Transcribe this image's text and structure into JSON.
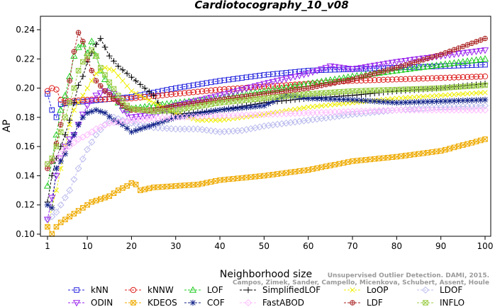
{
  "chart_data": {
    "type": "line",
    "title": "Cardiotocography_10_v08",
    "xlabel": "Neighborhood size",
    "ylabel": "AP",
    "xlim": [
      1,
      100
    ],
    "ylim": [
      0.1,
      0.245
    ],
    "xticks": [
      1,
      10,
      20,
      30,
      40,
      50,
      60,
      70,
      80,
      90,
      100
    ],
    "xtick_labels": [
      "1",
      "10",
      "20",
      "30",
      "40",
      "50",
      "60",
      "70",
      "80",
      "90",
      "100"
    ],
    "yticks": [
      0.1,
      0.12,
      0.14,
      0.16,
      0.18,
      0.2,
      0.22,
      0.24
    ],
    "ytick_labels": [
      "0.10",
      "0.12",
      "0.14",
      "0.16",
      "0.18",
      "0.20",
      "0.22",
      "0.24"
    ],
    "grid": false,
    "legend_position": "bottom",
    "series": [
      {
        "name": "kNN",
        "color": "#2222dd",
        "marker": "square",
        "dash": "dashed",
        "knots": [
          [
            1,
            0.196
          ],
          [
            2,
            0.185
          ],
          [
            3,
            0.18
          ],
          [
            4,
            0.189
          ],
          [
            6,
            0.19
          ],
          [
            10,
            0.191
          ],
          [
            20,
            0.194
          ],
          [
            30,
            0.2
          ],
          [
            40,
            0.205
          ],
          [
            50,
            0.209
          ],
          [
            60,
            0.212
          ],
          [
            70,
            0.213
          ],
          [
            80,
            0.214
          ],
          [
            90,
            0.215
          ],
          [
            100,
            0.216
          ]
        ]
      },
      {
        "name": "kNNW",
        "color": "#dd2222",
        "marker": "circle",
        "dash": "dashed",
        "knots": [
          [
            1,
            0.198
          ],
          [
            2,
            0.2
          ],
          [
            3,
            0.199
          ],
          [
            4,
            0.192
          ],
          [
            6,
            0.191
          ],
          [
            10,
            0.192
          ],
          [
            20,
            0.193
          ],
          [
            30,
            0.196
          ],
          [
            40,
            0.199
          ],
          [
            50,
            0.201
          ],
          [
            60,
            0.203
          ],
          [
            70,
            0.205
          ],
          [
            80,
            0.206
          ],
          [
            90,
            0.207
          ],
          [
            100,
            0.208
          ]
        ]
      },
      {
        "name": "LOF",
        "color": "#22cc22",
        "marker": "triangle",
        "dash": "dashed",
        "knots": [
          [
            1,
            0.133
          ],
          [
            2,
            0.15
          ],
          [
            3,
            0.168
          ],
          [
            4,
            0.185
          ],
          [
            5,
            0.195
          ],
          [
            6,
            0.208
          ],
          [
            7,
            0.222
          ],
          [
            8,
            0.228
          ],
          [
            9,
            0.23
          ],
          [
            10,
            0.224
          ],
          [
            11,
            0.232
          ],
          [
            12,
            0.222
          ],
          [
            13,
            0.212
          ],
          [
            15,
            0.2
          ],
          [
            17,
            0.19
          ],
          [
            19,
            0.185
          ],
          [
            20,
            0.186
          ],
          [
            25,
            0.188
          ],
          [
            30,
            0.19
          ],
          [
            40,
            0.193
          ],
          [
            50,
            0.198
          ],
          [
            60,
            0.203
          ],
          [
            70,
            0.208
          ],
          [
            80,
            0.212
          ],
          [
            90,
            0.216
          ],
          [
            100,
            0.22
          ]
        ]
      },
      {
        "name": "SimplifiedLOF",
        "color": "#000000",
        "marker": "plus",
        "dash": "dashed",
        "knots": [
          [
            1,
            0.122
          ],
          [
            2,
            0.14
          ],
          [
            3,
            0.152
          ],
          [
            4,
            0.16
          ],
          [
            5,
            0.168
          ],
          [
            6,
            0.178
          ],
          [
            7,
            0.19
          ],
          [
            8,
            0.202
          ],
          [
            9,
            0.208
          ],
          [
            10,
            0.218
          ],
          [
            11,
            0.224
          ],
          [
            12,
            0.23
          ],
          [
            13,
            0.234
          ],
          [
            14,
            0.228
          ],
          [
            15,
            0.222
          ],
          [
            17,
            0.215
          ],
          [
            19,
            0.21
          ],
          [
            21,
            0.205
          ],
          [
            23,
            0.2
          ],
          [
            25,
            0.195
          ],
          [
            27,
            0.185
          ],
          [
            30,
            0.182
          ],
          [
            40,
            0.185
          ],
          [
            50,
            0.19
          ],
          [
            60,
            0.193
          ],
          [
            70,
            0.195
          ],
          [
            80,
            0.198
          ],
          [
            90,
            0.2
          ],
          [
            100,
            0.203
          ]
        ]
      },
      {
        "name": "LoOP",
        "color": "#eeee00",
        "marker": "x",
        "dash": "dashed",
        "knots": [
          [
            1,
            0.105
          ],
          [
            2,
            0.118
          ],
          [
            3,
            0.13
          ],
          [
            4,
            0.145
          ],
          [
            5,
            0.16
          ],
          [
            6,
            0.175
          ],
          [
            7,
            0.185
          ],
          [
            8,
            0.19
          ],
          [
            10,
            0.2
          ],
          [
            12,
            0.21
          ],
          [
            14,
            0.214
          ],
          [
            16,
            0.212
          ],
          [
            18,
            0.205
          ],
          [
            20,
            0.198
          ],
          [
            25,
            0.19
          ],
          [
            30,
            0.183
          ],
          [
            35,
            0.178
          ],
          [
            40,
            0.178
          ],
          [
            50,
            0.182
          ],
          [
            60,
            0.187
          ],
          [
            70,
            0.19
          ],
          [
            80,
            0.193
          ],
          [
            90,
            0.195
          ],
          [
            100,
            0.197
          ]
        ]
      },
      {
        "name": "LDOF",
        "color": "#bbbbee",
        "marker": "diamond",
        "dash": "dashed",
        "knots": [
          [
            1,
            0.11
          ],
          [
            2,
            0.112
          ],
          [
            3,
            0.115
          ],
          [
            4,
            0.12
          ],
          [
            6,
            0.13
          ],
          [
            8,
            0.145
          ],
          [
            10,
            0.158
          ],
          [
            12,
            0.168
          ],
          [
            14,
            0.175
          ],
          [
            16,
            0.18
          ],
          [
            18,
            0.178
          ],
          [
            20,
            0.176
          ],
          [
            25,
            0.173
          ],
          [
            30,
            0.172
          ],
          [
            35,
            0.172
          ],
          [
            40,
            0.17
          ],
          [
            45,
            0.171
          ],
          [
            50,
            0.174
          ],
          [
            60,
            0.178
          ],
          [
            70,
            0.182
          ],
          [
            80,
            0.185
          ],
          [
            90,
            0.187
          ],
          [
            100,
            0.188
          ]
        ]
      },
      {
        "name": "ODIN",
        "color": "#9922ee",
        "marker": "triangle-down",
        "dash": "dashed",
        "knots": [
          [
            1,
            0.11
          ],
          [
            2,
            0.125
          ],
          [
            3,
            0.14
          ],
          [
            4,
            0.152
          ],
          [
            5,
            0.16
          ],
          [
            6,
            0.165
          ],
          [
            7,
            0.168
          ],
          [
            8,
            0.175
          ],
          [
            9,
            0.182
          ],
          [
            10,
            0.188
          ],
          [
            12,
            0.195
          ],
          [
            14,
            0.198
          ],
          [
            16,
            0.196
          ],
          [
            18,
            0.185
          ],
          [
            20,
            0.18
          ],
          [
            25,
            0.182
          ],
          [
            30,
            0.188
          ],
          [
            40,
            0.195
          ],
          [
            50,
            0.203
          ],
          [
            60,
            0.21
          ],
          [
            65,
            0.215
          ],
          [
            70,
            0.213
          ],
          [
            80,
            0.218
          ],
          [
            90,
            0.222
          ],
          [
            100,
            0.226
          ]
        ]
      },
      {
        "name": "KDEOS",
        "color": "#eeaa00",
        "marker": "boxed-x",
        "dash": "dashed",
        "knots": [
          [
            1,
            0.105
          ],
          [
            2,
            0.1
          ],
          [
            3,
            0.105
          ],
          [
            4,
            0.108
          ],
          [
            5,
            0.11
          ],
          [
            7,
            0.114
          ],
          [
            9,
            0.118
          ],
          [
            11,
            0.122
          ],
          [
            13,
            0.124
          ],
          [
            15,
            0.126
          ],
          [
            17,
            0.13
          ],
          [
            19,
            0.133
          ],
          [
            20,
            0.135
          ],
          [
            21,
            0.134
          ],
          [
            22,
            0.13
          ],
          [
            25,
            0.132
          ],
          [
            30,
            0.133
          ],
          [
            35,
            0.134
          ],
          [
            40,
            0.137
          ],
          [
            50,
            0.14
          ],
          [
            60,
            0.144
          ],
          [
            70,
            0.15
          ],
          [
            80,
            0.153
          ],
          [
            90,
            0.157
          ],
          [
            100,
            0.165
          ]
        ]
      },
      {
        "name": "COF",
        "color": "#112288",
        "marker": "asterisk",
        "dash": "dashed",
        "knots": [
          [
            1,
            0.12
          ],
          [
            2,
            0.118
          ],
          [
            3,
            0.145
          ],
          [
            4,
            0.15
          ],
          [
            5,
            0.155
          ],
          [
            6,
            0.162
          ],
          [
            7,
            0.168
          ],
          [
            8,
            0.175
          ],
          [
            9,
            0.18
          ],
          [
            10,
            0.183
          ],
          [
            12,
            0.185
          ],
          [
            14,
            0.183
          ],
          [
            16,
            0.178
          ],
          [
            18,
            0.175
          ],
          [
            20,
            0.17
          ],
          [
            22,
            0.172
          ],
          [
            25,
            0.175
          ],
          [
            30,
            0.18
          ],
          [
            40,
            0.185
          ],
          [
            50,
            0.188
          ],
          [
            55,
            0.195
          ],
          [
            60,
            0.193
          ],
          [
            70,
            0.192
          ],
          [
            80,
            0.19
          ],
          [
            90,
            0.191
          ],
          [
            100,
            0.192
          ]
        ]
      },
      {
        "name": "FastABOD",
        "color": "#ffbbff",
        "marker": "diamond",
        "dash": "dashed",
        "knots": [
          [
            1,
            0.148
          ],
          [
            3,
            0.152
          ],
          [
            5,
            0.158
          ],
          [
            8,
            0.165
          ],
          [
            10,
            0.168
          ],
          [
            12,
            0.172
          ],
          [
            15,
            0.176
          ],
          [
            20,
            0.178
          ],
          [
            30,
            0.18
          ],
          [
            40,
            0.181
          ],
          [
            50,
            0.182
          ],
          [
            60,
            0.183
          ],
          [
            70,
            0.184
          ],
          [
            80,
            0.185
          ],
          [
            90,
            0.185
          ],
          [
            100,
            0.185
          ]
        ]
      },
      {
        "name": "LDF",
        "color": "#aa2222",
        "marker": "circle-plus",
        "dash": "dashed",
        "knots": [
          [
            1,
            0.145
          ],
          [
            2,
            0.15
          ],
          [
            3,
            0.162
          ],
          [
            4,
            0.175
          ],
          [
            5,
            0.19
          ],
          [
            6,
            0.205
          ],
          [
            7,
            0.225
          ],
          [
            8,
            0.238
          ],
          [
            9,
            0.232
          ],
          [
            10,
            0.22
          ],
          [
            11,
            0.212
          ],
          [
            12,
            0.205
          ],
          [
            14,
            0.198
          ],
          [
            16,
            0.193
          ],
          [
            18,
            0.188
          ],
          [
            20,
            0.185
          ],
          [
            25,
            0.185
          ],
          [
            30,
            0.188
          ],
          [
            40,
            0.192
          ],
          [
            50,
            0.196
          ],
          [
            60,
            0.2
          ],
          [
            70,
            0.206
          ],
          [
            80,
            0.214
          ],
          [
            90,
            0.223
          ],
          [
            100,
            0.234
          ]
        ]
      },
      {
        "name": "INFLO",
        "color": "#99cc44",
        "marker": "boxed-x",
        "dash": "dashed",
        "knots": [
          [
            1,
            0.148
          ],
          [
            2,
            0.152
          ],
          [
            3,
            0.16
          ],
          [
            4,
            0.17
          ],
          [
            5,
            0.18
          ],
          [
            6,
            0.19
          ],
          [
            7,
            0.2
          ],
          [
            8,
            0.212
          ],
          [
            9,
            0.218
          ],
          [
            10,
            0.222
          ],
          [
            11,
            0.226
          ],
          [
            12,
            0.222
          ],
          [
            13,
            0.214
          ],
          [
            15,
            0.204
          ],
          [
            17,
            0.195
          ],
          [
            19,
            0.188
          ],
          [
            20,
            0.186
          ],
          [
            25,
            0.184
          ],
          [
            30,
            0.185
          ],
          [
            40,
            0.19
          ],
          [
            50,
            0.193
          ],
          [
            60,
            0.196
          ],
          [
            70,
            0.198
          ],
          [
            80,
            0.199
          ],
          [
            90,
            0.2
          ],
          [
            100,
            0.202
          ]
        ]
      }
    ],
    "legend_rows": [
      [
        "kNN",
        "kNNW",
        "LOF",
        "SimplifiedLOF",
        "LoOP",
        "LDOF"
      ],
      [
        "ODIN",
        "KDEOS",
        "COF",
        "FastABOD",
        "LDF",
        "INFLO"
      ]
    ]
  },
  "watermark": {
    "line1": "Unsupervised Outlier Detection. DAMI, 2015.",
    "line2": "Campos, Zimek, Sander, Campello, Micenkova, Schubert, Assent, Houle"
  }
}
